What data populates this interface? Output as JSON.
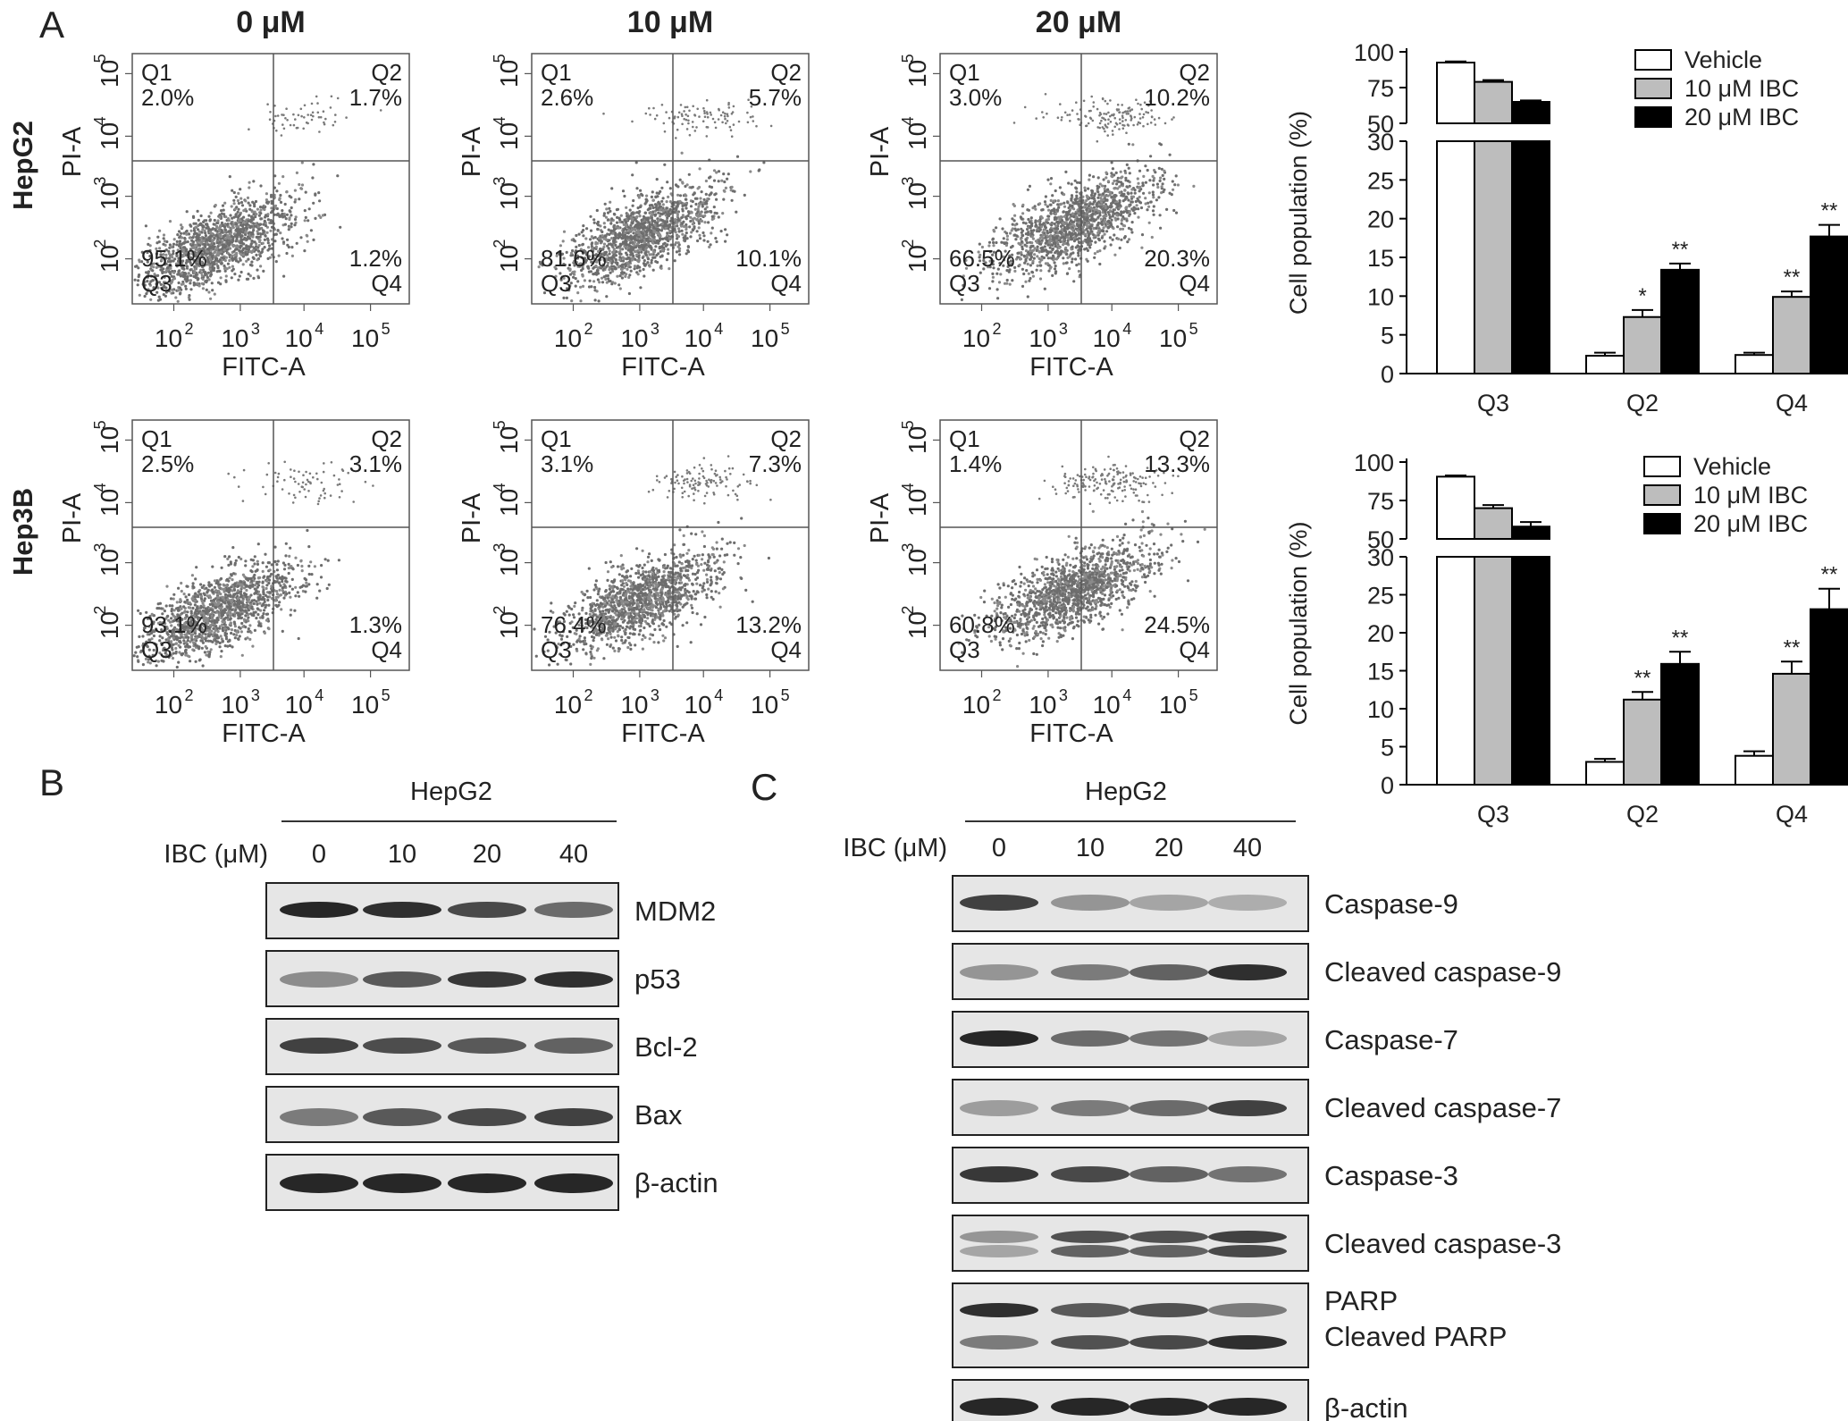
{
  "panel_labels": {
    "a": "A",
    "b": "B",
    "c": "C"
  },
  "concentrations": [
    "0 μM",
    "10 μM",
    "20 μM"
  ],
  "rows": [
    {
      "label": "HepG2",
      "quadrants": [
        {
          "q1": "2.0%",
          "q2": "1.7%",
          "q3": "95.1%",
          "q4": "1.2%"
        },
        {
          "q1": "2.6%",
          "q2": "5.7%",
          "q3": "81.6%",
          "q4": "10.1%"
        },
        {
          "q1": "3.0%",
          "q2": "10.2%",
          "q3": "66.5%",
          "q4": "20.3%"
        }
      ]
    },
    {
      "label": "Hep3B",
      "quadrants": [
        {
          "q1": "2.5%",
          "q2": "3.1%",
          "q3": "93.1%",
          "q4": "1.3%"
        },
        {
          "q1": "3.1%",
          "q2": "7.3%",
          "q3": "76.4%",
          "q4": "13.2%"
        },
        {
          "q1": "1.4%",
          "q2": "13.3%",
          "q3": "60.8%",
          "q4": "24.5%"
        }
      ]
    }
  ],
  "quadrant_names": {
    "q1": "Q1",
    "q2": "Q2",
    "q3": "Q3",
    "q4": "Q4"
  },
  "flow_axes": {
    "xlabel": "FITC-A",
    "ylabel": "PI-A",
    "ticks": [
      "10",
      "10",
      "10",
      "10"
    ],
    "exponents": [
      "2",
      "3",
      "4",
      "5"
    ]
  },
  "chart_data": [
    {
      "type": "bar",
      "categories": [
        "Q3",
        "Q2",
        "Q4"
      ],
      "ylabel": "Cell population (%)",
      "yticks_lower": [
        "0",
        "5",
        "10",
        "15",
        "20",
        "25",
        "30"
      ],
      "yticks_upper": [
        "50",
        "75",
        "100"
      ],
      "ylim_lower": [
        0,
        30
      ],
      "ylim_upper": [
        50,
        100
      ],
      "series": [
        {
          "name": "Vehicle",
          "color": "#ffffff",
          "values": [
            92.5,
            2.3,
            2.4
          ],
          "errors": [
            0.8,
            0.4,
            0.3
          ],
          "stars": [
            "",
            "",
            ""
          ]
        },
        {
          "name": "10 μM IBC",
          "color": "#bdbdbd",
          "values": [
            79,
            7.3,
            9.9
          ],
          "errors": [
            1.2,
            0.9,
            0.7
          ],
          "stars": [
            "",
            "*",
            "**"
          ]
        },
        {
          "name": "20 μM IBC",
          "color": "#000000",
          "values": [
            65,
            13.4,
            17.7
          ],
          "errors": [
            1.0,
            0.8,
            1.5
          ],
          "stars": [
            "",
            "**",
            "**"
          ]
        }
      ]
    },
    {
      "type": "bar",
      "categories": [
        "Q3",
        "Q2",
        "Q4"
      ],
      "ylabel": "Cell population (%)",
      "yticks_lower": [
        "0",
        "5",
        "10",
        "15",
        "20",
        "25",
        "30"
      ],
      "yticks_upper": [
        "50",
        "75",
        "100"
      ],
      "ylim_lower": [
        0,
        30
      ],
      "ylim_upper": [
        50,
        100
      ],
      "series": [
        {
          "name": "Vehicle",
          "color": "#ffffff",
          "values": [
            90.5,
            3.0,
            3.8
          ],
          "errors": [
            0.8,
            0.4,
            0.6
          ],
          "stars": [
            "",
            "",
            ""
          ]
        },
        {
          "name": "10 μM IBC",
          "color": "#bdbdbd",
          "values": [
            70,
            11.2,
            14.6
          ],
          "errors": [
            2.0,
            1.0,
            1.6
          ],
          "stars": [
            "",
            "**",
            "**"
          ]
        },
        {
          "name": "20 μM IBC",
          "color": "#000000",
          "values": [
            58,
            15.9,
            23.1
          ],
          "errors": [
            3.0,
            1.6,
            2.7
          ],
          "stars": [
            "",
            "**",
            "**"
          ]
        }
      ]
    }
  ],
  "blot_b": {
    "cell": "HepG2",
    "ibc_label": "IBC (μM)",
    "doses": [
      "0",
      "10",
      "20",
      "40"
    ],
    "proteins": [
      "MDM2",
      "p53",
      "Bcl-2",
      "Bax",
      "β-actin"
    ]
  },
  "blot_c": {
    "cell": "HepG2",
    "ibc_label": "IBC (μM)",
    "doses": [
      "0",
      "10",
      "20",
      "40"
    ],
    "proteins": [
      "Caspase-9",
      "Cleaved caspase-9",
      "Caspase-7",
      "Cleaved caspase-7",
      "Caspase-3",
      "Cleaved caspase-3",
      "PARP",
      "Cleaved PARP",
      "β-actin"
    ]
  }
}
